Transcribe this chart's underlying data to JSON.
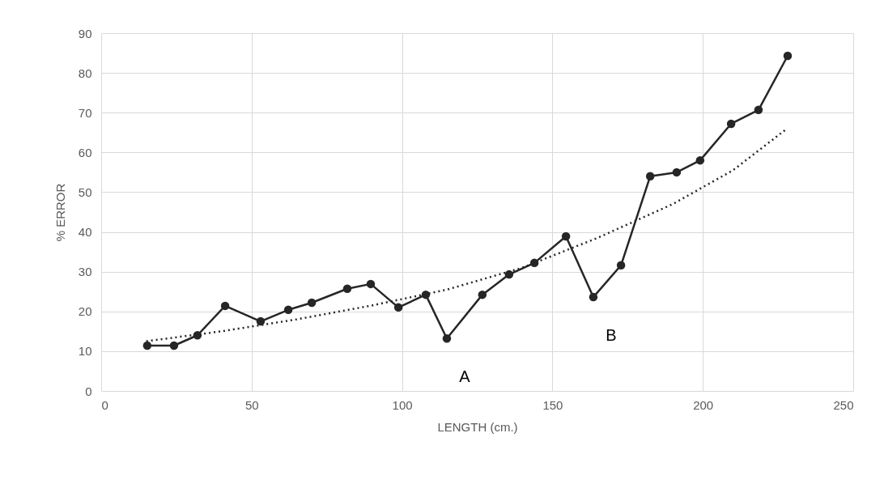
{
  "chart_data": {
    "type": "line",
    "xlabel": "LENGTH (cm.)",
    "ylabel": "% ERROR",
    "xlim": [
      0,
      250
    ],
    "xticks": [
      0,
      50,
      100,
      150,
      200,
      250
    ],
    "ylim": [
      0,
      90
    ],
    "yticks": [
      0,
      10,
      20,
      30,
      40,
      50,
      60,
      70,
      80,
      90
    ],
    "grid": true,
    "marker": "circle",
    "series": [
      {
        "color": "#262626",
        "line_style": "solid",
        "x": [
          15.3,
          24.2,
          32,
          41.2,
          53,
          62.2,
          70,
          81.8,
          89.6,
          98.8,
          107.9,
          114.9,
          126.7,
          135.6,
          144,
          154.5,
          163.6,
          172.8,
          182.5,
          191.3,
          199.1,
          209.4,
          218.5,
          228.2
        ],
        "values": [
          11.4,
          11.4,
          14,
          21.4,
          17.5,
          20.4,
          22.2,
          25.7,
          26.9,
          21,
          24.2,
          13.2,
          24.2,
          29.3,
          32.2,
          38.9,
          23.6,
          31.6,
          54,
          55,
          58,
          67.2,
          70.7,
          84.3
        ]
      },
      {
        "type": "line",
        "color": "#262626",
        "marker": "none",
        "line_style": "dotted",
        "x": [
          15,
          40,
          65,
          90,
          115,
          140,
          165,
          190,
          210,
          228
        ],
        "values": [
          12.5,
          15,
          18,
          21.5,
          25.5,
          31,
          38.5,
          47,
          55.5,
          66
        ]
      }
    ],
    "annotations": [
      "A",
      "B"
    ]
  }
}
